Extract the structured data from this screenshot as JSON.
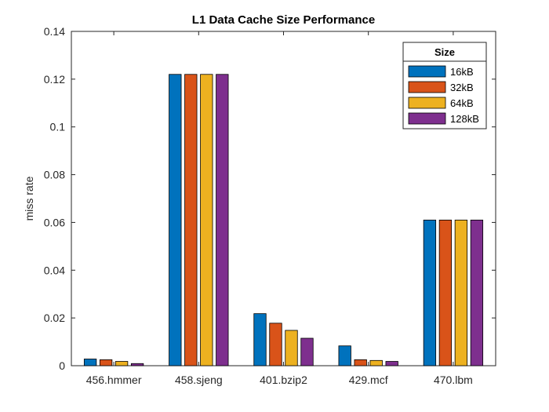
{
  "chart_data": {
    "type": "bar",
    "title": "L1 Data Cache Size Performance",
    "xlabel": "",
    "ylabel": "miss rate",
    "categories": [
      "456.hmmer",
      "458.sjeng",
      "401.bzip2",
      "429.mcf",
      "470.lbm"
    ],
    "series": [
      {
        "name": "16kB",
        "color": "#0072BD",
        "values": [
          0.0028,
          0.122,
          0.0218,
          0.0083,
          0.061
        ]
      },
      {
        "name": "32kB",
        "color": "#D95319",
        "values": [
          0.0025,
          0.122,
          0.0178,
          0.0025,
          0.061
        ]
      },
      {
        "name": "64kB",
        "color": "#EDB120",
        "values": [
          0.0018,
          0.122,
          0.0148,
          0.0022,
          0.061
        ]
      },
      {
        "name": "128kB",
        "color": "#7E2F8E",
        "values": [
          0.0009,
          0.122,
          0.0115,
          0.0018,
          0.061
        ]
      }
    ],
    "ylim": [
      0,
      0.14
    ],
    "yticks": [
      "0",
      "0.02",
      "0.04",
      "0.06",
      "0.08",
      "0.1",
      "0.12",
      "0.14"
    ],
    "ytick_values": [
      0,
      0.02,
      0.04,
      0.06,
      0.08,
      0.1,
      0.12,
      0.14
    ],
    "legend": {
      "title": "Size",
      "placement": "top-right"
    },
    "grid": false
  }
}
